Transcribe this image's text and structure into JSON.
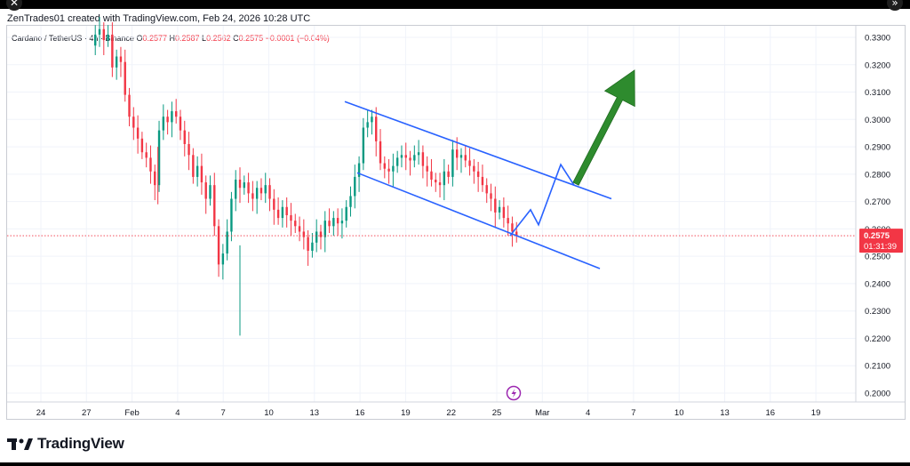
{
  "header": {
    "attribution": "ZenTrades01 created with TradingView.com, Feb 24, 2026 10:28 UTC",
    "close_icon": "close-icon",
    "expand_icon": "double-chevron-right-icon"
  },
  "legend": {
    "symbol": "Cardano / TetherUS · 4h · Binance",
    "o_key": "O",
    "o_val": "0.2577",
    "h_key": "H",
    "h_val": "0.2587",
    "l_key": "L",
    "l_val": "0.2562",
    "c_key": "C",
    "c_val": "0.2575",
    "change": "−0.0001 (−0.04%)"
  },
  "brand": {
    "name": "TradingView",
    "logo_icon": "tradingview-logo-icon"
  },
  "chart_data": {
    "type": "candlestick",
    "symbol": "Cardano / TetherUS",
    "interval": "4h",
    "exchange": "Binance",
    "y_ticks": [
      "0.3300",
      "0.3200",
      "0.3100",
      "0.3000",
      "0.2900",
      "0.2800",
      "0.2700",
      "0.2600",
      "0.2500",
      "0.2400",
      "0.2300",
      "0.2200",
      "0.2100",
      "0.2000"
    ],
    "y_range": [
      0.197,
      0.335
    ],
    "x_ticks": [
      "24",
      "27",
      "Feb",
      "4",
      "7",
      "10",
      "13",
      "16",
      "19",
      "22",
      "25",
      "Mar",
      "4",
      "7",
      "10",
      "13",
      "16",
      "19"
    ],
    "last_price": "0.2575",
    "countdown": "01:31:39",
    "colors": {
      "up": "#089981",
      "down": "#f23645",
      "drawing": "#2962ff",
      "arrow": "#2e8b2e",
      "price_line": "#f23645"
    },
    "price_path": [
      0.327,
      0.331,
      0.333,
      0.329,
      0.331,
      0.319,
      0.323,
      0.321,
      0.309,
      0.301,
      0.297,
      0.293,
      0.288,
      0.286,
      0.281,
      0.276,
      0.296,
      0.301,
      0.299,
      0.303,
      0.301,
      0.296,
      0.291,
      0.287,
      0.279,
      0.283,
      0.277,
      0.271,
      0.276,
      0.261,
      0.247,
      0.251,
      0.259,
      0.271,
      0.278,
      0.275,
      0.277,
      0.273,
      0.271,
      0.275,
      0.273,
      0.276,
      0.271,
      0.267,
      0.264,
      0.268,
      0.265,
      0.263,
      0.261,
      0.259,
      0.257,
      0.252,
      0.255,
      0.259,
      0.257,
      0.263,
      0.261,
      0.264,
      0.262,
      0.263,
      0.268,
      0.272,
      0.279,
      0.284,
      0.297,
      0.299,
      0.301,
      0.292,
      0.284,
      0.282,
      0.281,
      0.283,
      0.286,
      0.287,
      0.286,
      0.285,
      0.287,
      0.288,
      0.283,
      0.281,
      0.278,
      0.277,
      0.276,
      0.281,
      0.279,
      0.289,
      0.286,
      0.287,
      0.285,
      0.283,
      0.281,
      0.279,
      0.276,
      0.273,
      0.271,
      0.266,
      0.268,
      0.264,
      0.262,
      0.259,
      0.2575
    ],
    "down_wicks": [
      {
        "date": "Feb 6",
        "low": 0.221
      },
      {
        "date": "Feb 1",
        "low": 0.269
      }
    ],
    "annotations": {
      "channel_upper": [
        [
          "Feb 13 12:00",
          0.3065
        ],
        [
          "Mar 5",
          0.271
        ]
      ],
      "channel_lower": [
        [
          "Feb 14",
          0.2805
        ],
        [
          "Mar 5",
          0.2455
        ]
      ],
      "projection": [
        [
          0.2575,
          "Feb 24"
        ],
        [
          0.267,
          "Feb 25"
        ],
        [
          0.2615,
          "Feb 26"
        ],
        [
          0.2835,
          "Feb 27"
        ],
        [
          0.276,
          "Feb 28 12:00"
        ]
      ],
      "arrow": {
        "from": [
          0.2765,
          "Feb 28 12:00"
        ],
        "to": [
          0.318,
          "Mar 3"
        ]
      }
    }
  }
}
